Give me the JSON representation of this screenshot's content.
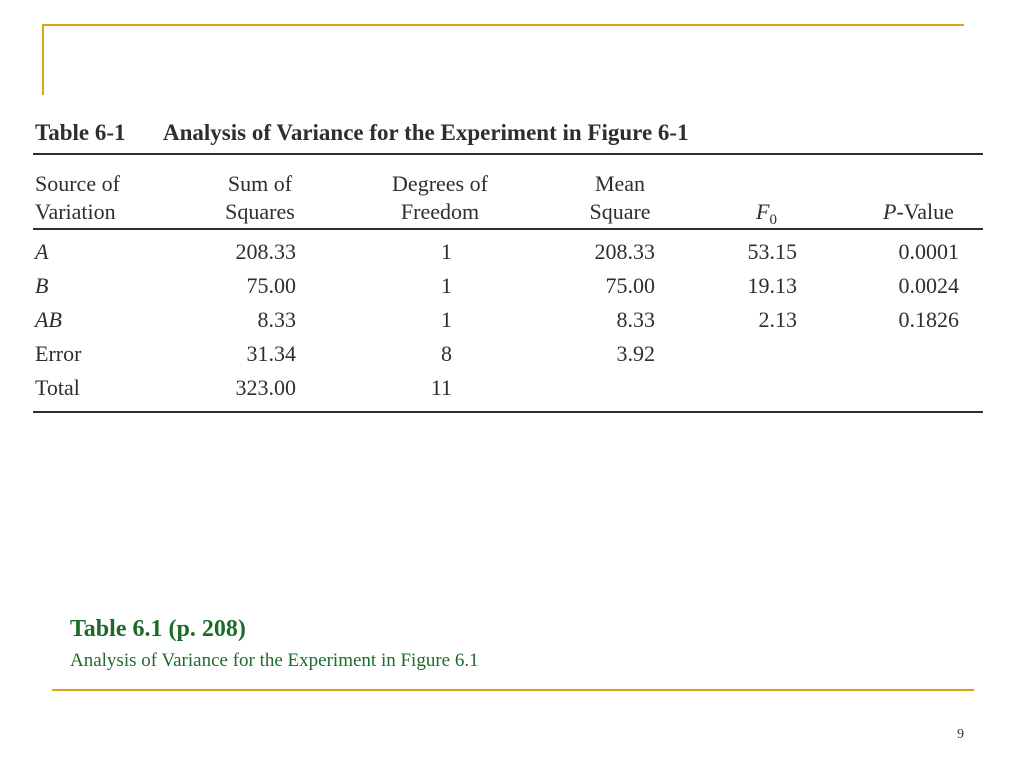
{
  "slide": {
    "table_heading_number": "Table 6-1",
    "table_heading_text": "Analysis of Variance for the Experiment in Figure 6-1",
    "caption_title": "Table 6.1  (p. 208)",
    "caption_subtitle": "Analysis of Variance for the Experiment in Figure 6.1",
    "page_number": "9",
    "accent_color": "#d9a514",
    "caption_color": "#1d6b2a"
  },
  "table": {
    "headers": {
      "source_1": "Source of",
      "source_2": "Variation",
      "ss_1": "Sum of",
      "ss_2": "Squares",
      "df_1": "Degrees of",
      "df_2": "Freedom",
      "ms_1": "Mean",
      "ms_2": "Square",
      "f_main": "F",
      "f_sub": "0",
      "p_italic": "P",
      "p_rest": "-Value"
    },
    "rows": [
      {
        "source": "A",
        "ss": "208.33",
        "df": "1",
        "ms": "208.33",
        "f": "53.15",
        "p": "0.0001"
      },
      {
        "source": "B",
        "ss": "75.00",
        "df": "1",
        "ms": "75.00",
        "f": "19.13",
        "p": "0.0024"
      },
      {
        "source": "AB",
        "ss": "8.33",
        "df": "1",
        "ms": "8.33",
        "f": "2.13",
        "p": "0.1826"
      },
      {
        "source": "Error",
        "ss": "31.34",
        "df": "8",
        "ms": "3.92",
        "f": "",
        "p": ""
      },
      {
        "source": "Total",
        "ss": "323.00",
        "df": "11",
        "ms": "",
        "f": "",
        "p": ""
      }
    ]
  }
}
